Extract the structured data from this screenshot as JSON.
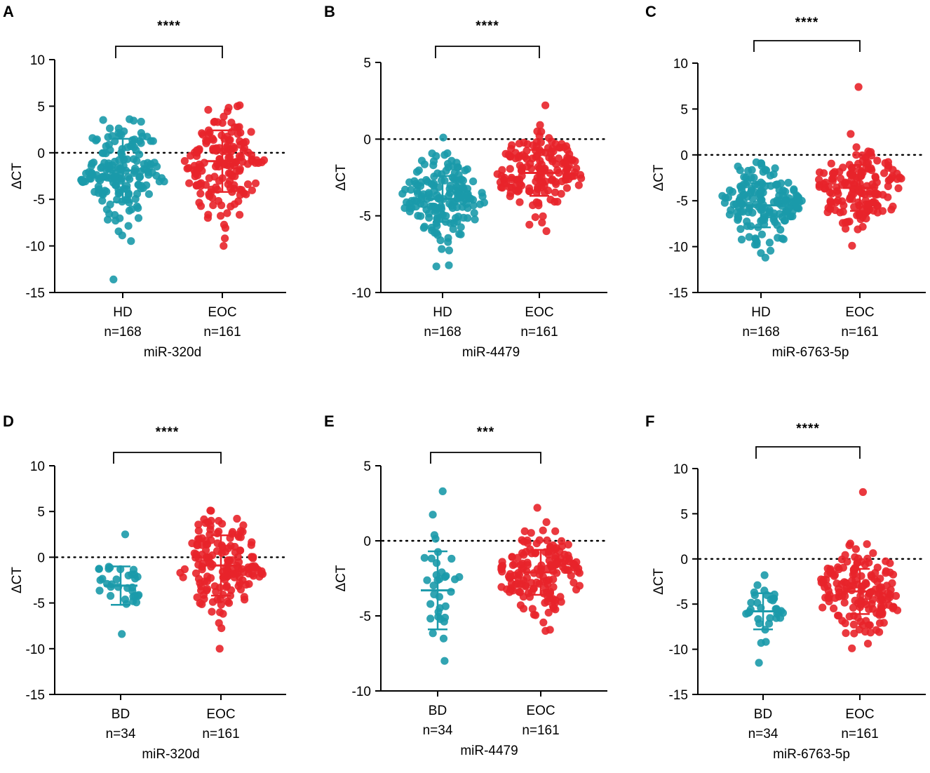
{
  "colors": {
    "healthy": "#1b9aaa",
    "benign": "#1b9aaa",
    "eoc": "#e8242a"
  },
  "chart_data": [
    {
      "panel": "A",
      "type": "scatter",
      "ylabel": "ΔCT",
      "ylim": [
        -15,
        10
      ],
      "yticks": [
        10,
        5,
        0,
        -5,
        -10,
        -15
      ],
      "reference_line": 0,
      "subtitle": "miR-320d",
      "significance": "****",
      "groups": [
        {
          "label": "HD",
          "n_label": "n=168",
          "n": 168,
          "color": "healthy",
          "mean": -1.9,
          "sd": 3.4,
          "min": -13.6,
          "max": 3.6
        },
        {
          "label": "EOC",
          "n_label": "n=161",
          "n": 161,
          "color": "eoc",
          "mean": -0.9,
          "sd": 3.3,
          "min": -10.0,
          "max": 5.1
        }
      ]
    },
    {
      "panel": "B",
      "type": "scatter",
      "ylabel": "ΔCT",
      "ylim": [
        -10,
        5
      ],
      "yticks": [
        5,
        0,
        -5,
        -10
      ],
      "reference_line": 0,
      "subtitle": "miR-4479",
      "significance": "****",
      "groups": [
        {
          "label": "HD",
          "n_label": "n=168",
          "n": 168,
          "color": "healthy",
          "mean": -3.9,
          "sd": 1.5,
          "min": -8.3,
          "max": 0.1
        },
        {
          "label": "EOC",
          "n_label": "n=161",
          "n": 161,
          "color": "eoc",
          "mean": -2.2,
          "sd": 1.5,
          "min": -6.0,
          "max": 2.2
        }
      ]
    },
    {
      "panel": "C",
      "type": "scatter",
      "ylabel": "ΔCT",
      "ylim": [
        -15,
        10
      ],
      "yticks": [
        10,
        5,
        0,
        -5,
        -10,
        -15
      ],
      "reference_line": 0,
      "subtitle": "miR-6763-5p",
      "significance": "****",
      "groups": [
        {
          "label": "HD",
          "n_label": "n=168",
          "n": 168,
          "color": "healthy",
          "mean": -5.5,
          "sd": 2.4,
          "min": -11.2,
          "max": -0.8
        },
        {
          "label": "EOC",
          "n_label": "n=161",
          "n": 161,
          "color": "eoc",
          "mean": -3.6,
          "sd": 2.5,
          "min": -9.9,
          "max": 7.4
        }
      ]
    },
    {
      "panel": "D",
      "type": "scatter",
      "ylabel": "ΔCT",
      "ylim": [
        -15,
        10
      ],
      "yticks": [
        10,
        5,
        0,
        -5,
        -10,
        -15
      ],
      "reference_line": 0,
      "subtitle": "miR-320d",
      "significance": "****",
      "groups": [
        {
          "label": "BD",
          "n_label": "n=34",
          "n": 34,
          "color": "benign",
          "mean": -3.1,
          "sd": 2.1,
          "min": -8.4,
          "max": 2.5
        },
        {
          "label": "EOC",
          "n_label": "n=161",
          "n": 161,
          "color": "eoc",
          "mean": -0.9,
          "sd": 3.3,
          "min": -10.0,
          "max": 5.1
        }
      ]
    },
    {
      "panel": "E",
      "type": "scatter",
      "ylabel": "ΔCT",
      "ylim": [
        -10,
        5
      ],
      "yticks": [
        5,
        0,
        -5,
        -10
      ],
      "reference_line": 0,
      "subtitle": "miR-4479",
      "significance": "***",
      "groups": [
        {
          "label": "BD",
          "n_label": "n=34",
          "n": 34,
          "color": "benign",
          "mean": -3.3,
          "sd": 2.6,
          "min": -8.0,
          "max": 3.3
        },
        {
          "label": "EOC",
          "n_label": "n=161",
          "n": 161,
          "color": "eoc",
          "mean": -2.1,
          "sd": 1.5,
          "min": -6.0,
          "max": 2.2
        }
      ]
    },
    {
      "panel": "F",
      "type": "scatter",
      "ylabel": "ΔCT",
      "ylim": [
        -15,
        10
      ],
      "yticks": [
        10,
        5,
        0,
        -5,
        -10,
        -15
      ],
      "reference_line": 0,
      "subtitle": "miR-6763-5p",
      "significance": "****",
      "groups": [
        {
          "label": "BD",
          "n_label": "n=34",
          "n": 34,
          "color": "benign",
          "mean": -5.8,
          "sd": 2.0,
          "min": -11.5,
          "max": -1.8
        },
        {
          "label": "EOC",
          "n_label": "n=161",
          "n": 161,
          "color": "eoc",
          "mean": -3.6,
          "sd": 2.5,
          "min": -9.9,
          "max": 7.4
        }
      ]
    }
  ]
}
